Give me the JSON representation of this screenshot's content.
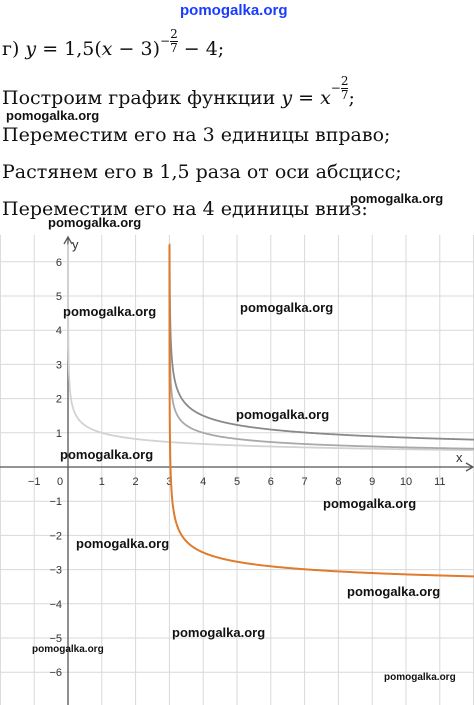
{
  "watermark_top": "pomogalka.org",
  "formula": {
    "prefix": "г) ",
    "y": "y",
    "body": " = 1,5(",
    "x": "x",
    "shift": " − 3)",
    "exp_num": "2",
    "exp_den": "7",
    "exp_sign": "−",
    "tail": " − 4;"
  },
  "step1": {
    "text": "Построим график функции ",
    "y": "y",
    "eq": " = ",
    "x": "x",
    "exp_sign": "−",
    "exp_num": "2",
    "exp_den": "7",
    "end": ";"
  },
  "step2": "Переместим его на 3 единицы вправо;",
  "step3": "Растянем его в 1,5 раза от оси абсцисс;",
  "step4": "Переместим его на 4 единицы вниз:",
  "watermarks": [
    "pomogalka.org",
    "pomogalka.org",
    "pomogalka.org",
    "pomogalka.org",
    "pomogalka.org",
    "pomogalka.org",
    "pomogalka.org",
    "pomogalka.org",
    "pomogalka.org",
    "pomogalka.org",
    "pomogalka.org",
    "pomogalka.org",
    "pomogalka.org"
  ],
  "chart_data": {
    "type": "line",
    "xlabel": "x",
    "ylabel": "y",
    "xlim": [
      -1.2,
      12.2
    ],
    "ylim": [
      -6.7,
      6.5
    ],
    "x_ticks": [
      "−1",
      "0",
      "1",
      "2",
      "3",
      "4",
      "5",
      "6",
      "7",
      "8",
      "9",
      "10",
      "11"
    ],
    "y_ticks": [
      "6",
      "5",
      "4",
      "3",
      "2",
      "1",
      "−1",
      "−2",
      "−3",
      "−4",
      "−5",
      "−6"
    ],
    "grid": true,
    "series": [
      {
        "formula": "x^(-2/7)",
        "color": "#d2d2d2",
        "x_start": 0
      },
      {
        "formula": "(x-3)^(-2/7)",
        "color": "#a9a9a9",
        "x_start": 3
      },
      {
        "formula": "1.5(x-3)^(-2/7)",
        "color": "#8a8a8a",
        "x_start": 3
      },
      {
        "formula": "1.5(x-3)^(-2/7)-4",
        "color": "#e07b2e",
        "x_start": 3
      }
    ]
  }
}
